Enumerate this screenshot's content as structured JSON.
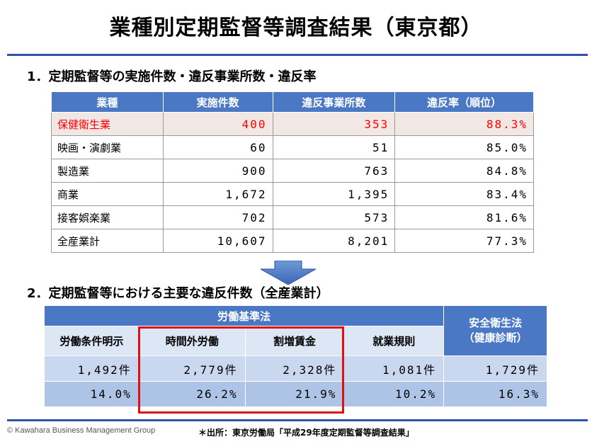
{
  "title": "業種別定期監督等調査結果（東京都）",
  "section1": {
    "heading": "1．定期監督等の実施件数・違反事業所数・違反率",
    "headers": [
      "業種",
      "実施件数",
      "違反事業所数",
      "違反率（順位）"
    ],
    "rows": [
      {
        "industry": "保健衛生業",
        "inspections": "400",
        "violators": "353",
        "rate": "88.3%"
      },
      {
        "industry": "映画・演劇業",
        "inspections": "60",
        "violators": "51",
        "rate": "85.0%"
      },
      {
        "industry": "製造業",
        "inspections": "900",
        "violators": "763",
        "rate": "84.8%"
      },
      {
        "industry": "商業",
        "inspections": "1,672",
        "violators": "1,395",
        "rate": "83.4%"
      },
      {
        "industry": "接客娯楽業",
        "inspections": "702",
        "violators": "573",
        "rate": "81.6%"
      },
      {
        "industry": "全産業計",
        "inspections": "10,607",
        "violators": "8,201",
        "rate": "77.3%"
      }
    ]
  },
  "section2": {
    "heading": "2．定期監督等における主要な違反件数（全産業計）",
    "group_label": "労働基準法",
    "safety_label_line1": "安全衛生法",
    "safety_label_line2": "（健康診断）",
    "columns": [
      "労働条件明示",
      "時間外労働",
      "割増賃金",
      "就業規則"
    ],
    "counts": [
      "1,492件",
      "2,779件",
      "2,328件",
      "1,081件",
      "1,729件"
    ],
    "percents": [
      "14.0%",
      "26.2%",
      "21.9%",
      "10.2%",
      "16.3%"
    ]
  },
  "footer": {
    "copyright": "© Kawahara Business Management Group",
    "source": "＊出所：東京労働局「平成29年度定期監督等調査結果」"
  },
  "colors": {
    "header_blue": "#4a78c4",
    "rule_blue": "#2f52a8",
    "highlight_red": "#ff0000",
    "box_red": "#e01010"
  },
  "icons": {
    "arrow": "down-arrow-icon"
  }
}
